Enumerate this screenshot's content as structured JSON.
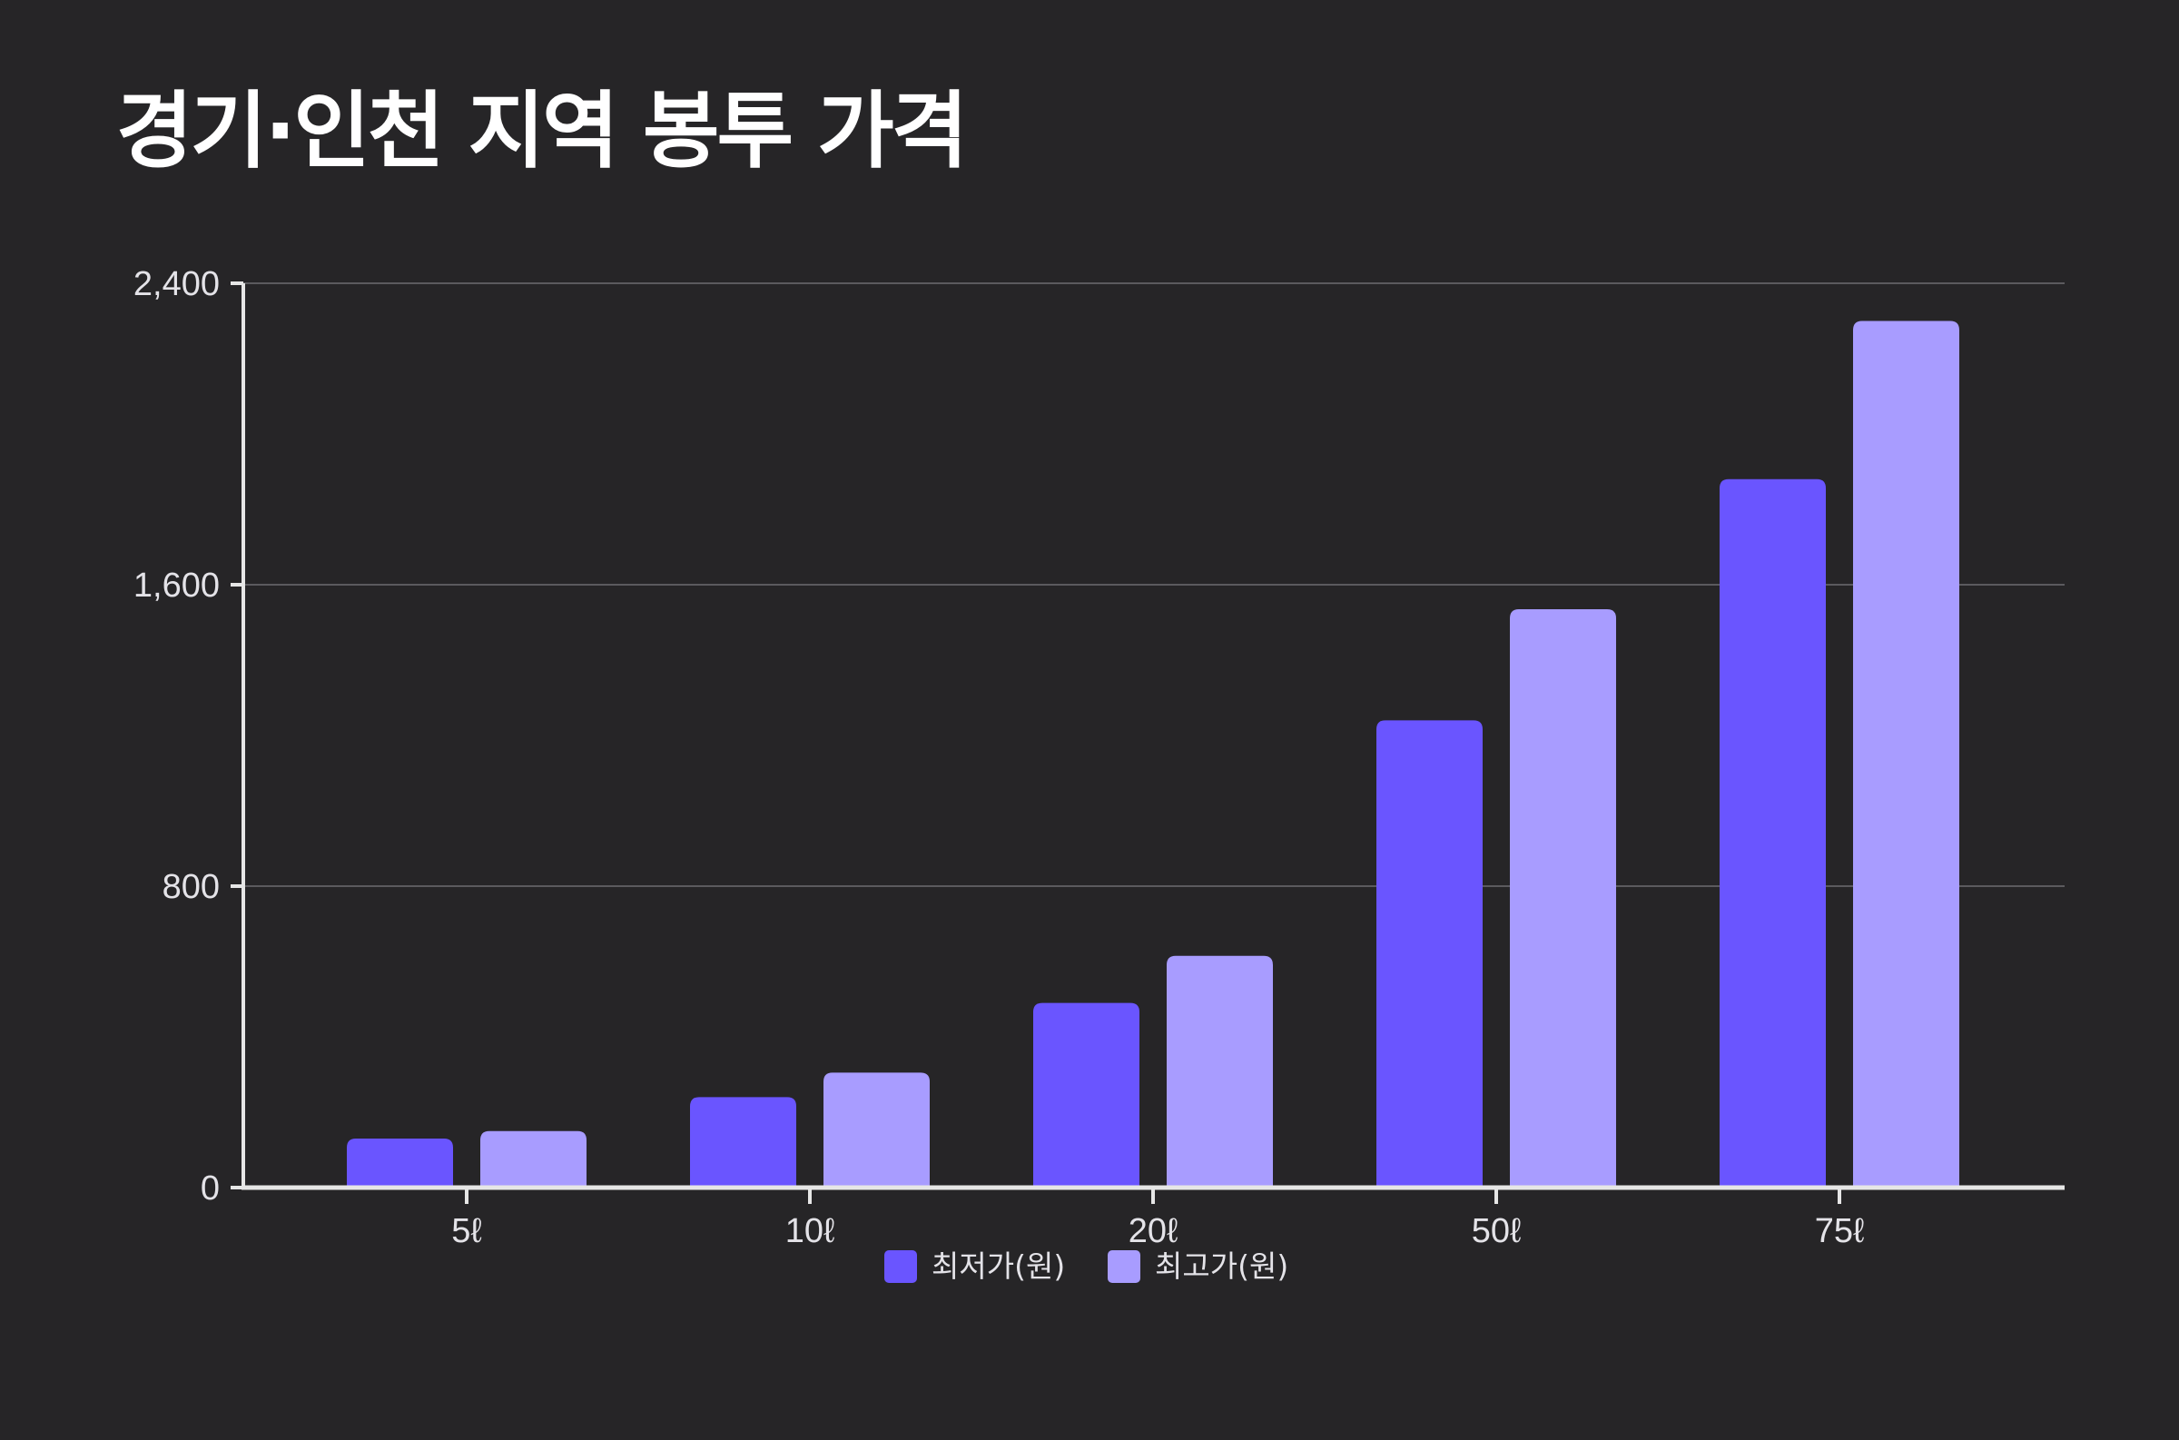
{
  "title": "경기·인천 지역 봉투 가격",
  "chart_data": {
    "type": "bar",
    "title": "경기·인천 지역 봉투 가격",
    "xlabel": "",
    "ylabel": "",
    "categories": [
      "5ℓ",
      "10ℓ",
      "20ℓ",
      "50ℓ",
      "75ℓ"
    ],
    "series": [
      {
        "name": "최저가(원)",
        "values": [
          130,
          240,
          490,
          1240,
          1880
        ],
        "color": "#6a55ff"
      },
      {
        "name": "최고가(원)",
        "values": [
          150,
          305,
          615,
          1535,
          2300
        ],
        "color": "#a89cff"
      }
    ],
    "ylim": [
      0,
      2400
    ],
    "yticks": [
      0,
      800,
      1600,
      2400
    ],
    "ytick_labels": [
      "0",
      "800",
      "1,600",
      "2,400"
    ],
    "grid": true,
    "legend": "bottom-center"
  },
  "colors": {
    "background": "#262527",
    "axis": "#e6e6e6",
    "grid": "#5b5a5e",
    "text": "#e4e3e8"
  }
}
